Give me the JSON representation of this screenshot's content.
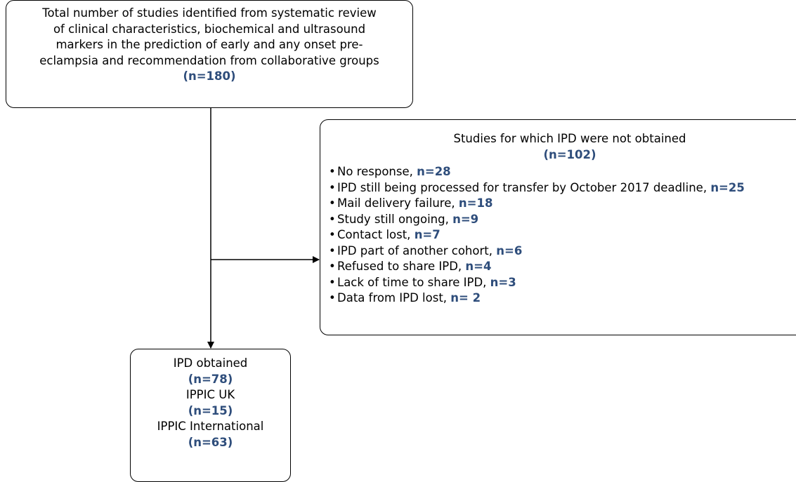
{
  "nodes": [
    {
      "lines": [
        "Total number of studies identified from systematic review",
        "of clinical characteristics, biochemical and ultrasound",
        "markers in the prediction of early and any onset pre-",
        "eclampsia and recommendation from collaborative groups"
      ],
      "count": "(n=180)"
    },
    {
      "lines": [
        "Studies for which IPD were not obtained"
      ],
      "count": "(n=102)",
      "items": [
        {
          "text": "No response,",
          "count": "n=28"
        },
        {
          "text": "IPD still being processed for transfer by October 2017 deadline,",
          "count": "n=25"
        },
        {
          "text": "Mail delivery failure,",
          "count": "n=18"
        },
        {
          "text": "Study still ongoing,",
          "count": "n=9"
        },
        {
          "text": "Contact lost,",
          "count": "n=7"
        },
        {
          "text": "IPD part of another cohort,",
          "count": "n=6"
        },
        {
          "text": "Refused to share IPD,",
          "count": "n=4"
        },
        {
          "text": "Lack of time to share IPD,",
          "count": "n=3"
        },
        {
          "text": "Data from IPD lost,",
          "count": "n= 2"
        }
      ]
    },
    {
      "groups": [
        {
          "label": "IPD obtained",
          "count": "(n=78)"
        },
        {
          "label": "IPPIC UK",
          "count": "(n=15)"
        },
        {
          "label": "IPPIC International",
          "count": "(n=63)"
        }
      ]
    }
  ]
}
